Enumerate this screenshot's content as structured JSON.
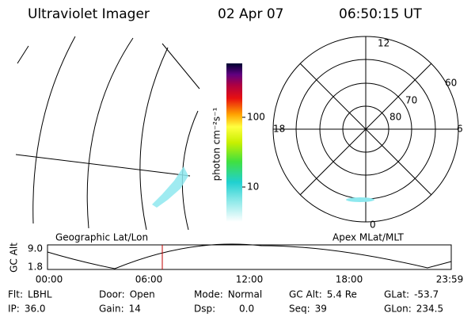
{
  "header": {
    "title": "Ultraviolet Imager",
    "date": "02 Apr 07",
    "time": "06:50:15 UT"
  },
  "colorbar": {
    "label": "photon cm⁻²s⁻¹",
    "ticks": [
      "100",
      "10"
    ]
  },
  "polar": {
    "mlt_labels": [
      "12",
      "18",
      "6",
      "0"
    ],
    "lat_labels": [
      "60",
      "70",
      "80"
    ]
  },
  "orbit": {
    "left_title": "Geographic Lat/Lon",
    "right_title": "Apex MLat/MLT",
    "y_label": "GC Alt",
    "y_ticks": [
      "9.0",
      "1.8"
    ],
    "x_ticks": [
      "00:00",
      "06:00",
      "12:00",
      "18:00",
      "23:59"
    ]
  },
  "footer": {
    "rows": [
      [
        {
          "label": "Flt:",
          "value": "LBHL"
        },
        {
          "label": "Door:",
          "value": "Open"
        },
        {
          "label": "Mode:",
          "value": "Normal"
        },
        {
          "label": "GC Alt:",
          "value": "5.4 Re"
        },
        {
          "label": "GLat:",
          "value": "-53.7"
        }
      ],
      [
        {
          "label": "IP:",
          "value": "36.0"
        },
        {
          "label": "Gain:",
          "value": "14"
        },
        {
          "label": "Dsp:",
          "value": "0.0"
        },
        {
          "label": "Seq:",
          "value": "39"
        },
        {
          "label": "GLon:",
          "value": "234.5"
        }
      ]
    ]
  }
}
